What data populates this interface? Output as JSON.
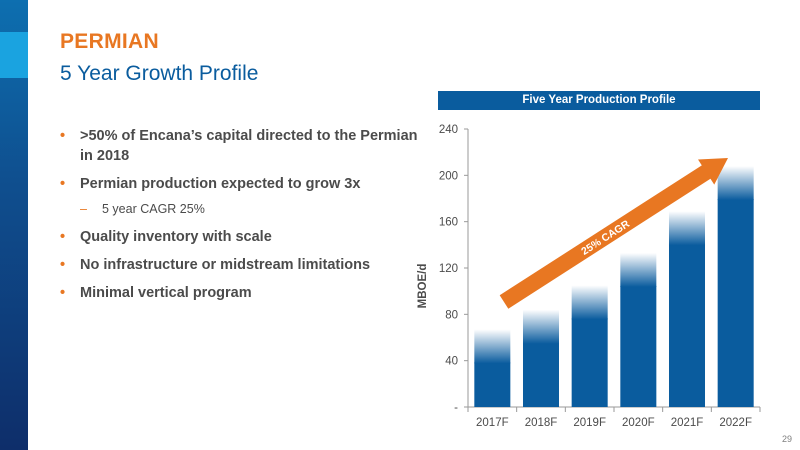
{
  "slide": {
    "title": "PERMIAN",
    "subtitle": "5 Year Growth Profile",
    "page_number": "29"
  },
  "bullets": [
    {
      "text": ">50% of Encana’s capital directed to the Permian in 2018"
    },
    {
      "text": "Permian production expected to grow 3x"
    },
    {
      "text": "Quality inventory with scale"
    },
    {
      "text": "No infrastructure or midstream limitations"
    },
    {
      "text": "Minimal vertical program"
    }
  ],
  "sub_bullet": {
    "text": "5 year CAGR 25%"
  },
  "colors": {
    "accent_orange": "#e87722",
    "brand_blue": "#0a5c9e",
    "bar_blue": "#0a5c9e"
  },
  "chart_data": {
    "type": "bar",
    "title": "Five Year Production Profile",
    "ylabel": "MBOE/d",
    "categories": [
      "2017F",
      "2018F",
      "2019F",
      "2020F",
      "2021F",
      "2022F"
    ],
    "values": [
      67,
      84,
      105,
      133,
      169,
      208
    ],
    "ylim": [
      0,
      240
    ],
    "yticks": [
      0,
      40,
      80,
      120,
      160,
      200,
      240
    ],
    "ytick_labels": [
      "-",
      "40",
      "80",
      "120",
      "160",
      "200",
      "240"
    ],
    "grid": false,
    "annotation": "25% CAGR"
  }
}
